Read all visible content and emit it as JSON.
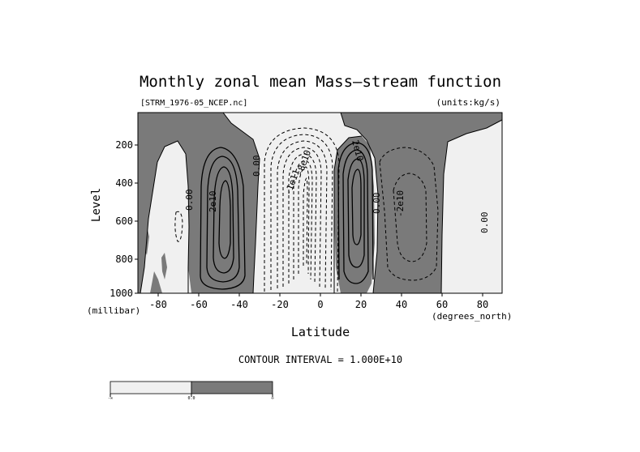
{
  "chart_data": {
    "type": "contour",
    "title": "Monthly zonal mean Mass—stream function",
    "file_label": "[STRM_1976-05_NCEP.nc]",
    "units_label": "(units:kg/s)",
    "xlabel": "Latitude",
    "xunit_label": "(degrees_north)",
    "ylabel": "Level",
    "yunit_label": "(millibar)",
    "xlim": [
      -90,
      90
    ],
    "ylim": [
      1000,
      50
    ],
    "x_ticks": [
      "-80",
      "-60",
      "-40",
      "-20",
      "0",
      "20",
      "40",
      "60",
      "80"
    ],
    "y_ticks": [
      "200",
      "400",
      "600",
      "800",
      "1000"
    ],
    "contour_interval_label": "CONTOUR INTERVAL = 1.000E+10",
    "contour_labels": [
      "0.00",
      "2e10",
      "0.00",
      "-1e11",
      "-8e10",
      "2e10",
      "0.00",
      "-2e10",
      "0.00"
    ],
    "shading": {
      "positive": "#7a7a7a",
      "negative": "#f0f0f0"
    },
    "colorbar_labels": [
      "-∞",
      "0.0",
      "∞"
    ]
  }
}
